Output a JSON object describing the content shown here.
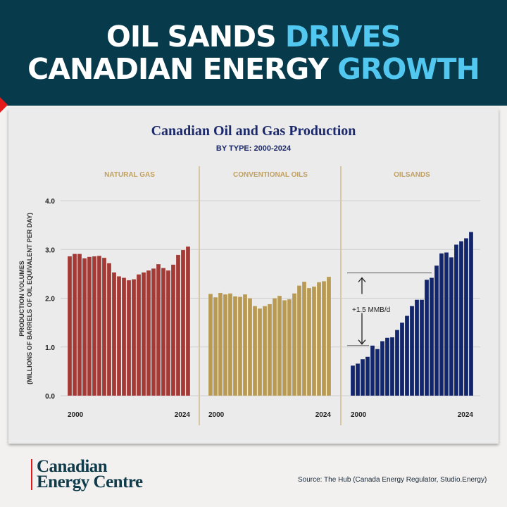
{
  "header": {
    "line1_white": "OIL SANDS ",
    "line1_accent": "DRIVES",
    "line2_white": "CANADIAN ENERGY ",
    "line2_accent": "GROWTH"
  },
  "colors": {
    "header_bg": "#073b4c",
    "accent": "#52c8f0",
    "natural_gas": "#a33a35",
    "conventional_oils": "#b99a55",
    "oilsands": "#13266b",
    "title": "#1c2a6b",
    "panel_label": "#c0a060"
  },
  "chart_data": {
    "type": "bar",
    "title": "Canadian Oil and Gas Production",
    "subtitle": "BY TYPE: 2000-2024",
    "ylabel_line1": "PRODUCTION VOLUMES",
    "ylabel_line2": "(MILLIONS OF BARRELS OF OIL EQUIVALENT PER DAY)",
    "ylim": [
      0,
      4
    ],
    "yticks": [
      "0.0",
      "1.0",
      "2.0",
      "3.0",
      "4.0"
    ],
    "grid": true,
    "x": [
      2000,
      2001,
      2002,
      2003,
      2004,
      2005,
      2006,
      2007,
      2008,
      2009,
      2010,
      2011,
      2012,
      2013,
      2014,
      2015,
      2016,
      2017,
      2018,
      2019,
      2020,
      2021,
      2022,
      2023,
      2024
    ],
    "xtick_labels": [
      "2000",
      "2024"
    ],
    "panels": [
      {
        "name": "NATURAL GAS",
        "color": "#a33a35",
        "values": [
          2.86,
          2.91,
          2.91,
          2.82,
          2.85,
          2.86,
          2.87,
          2.83,
          2.72,
          2.53,
          2.45,
          2.42,
          2.37,
          2.39,
          2.49,
          2.53,
          2.57,
          2.61,
          2.7,
          2.62,
          2.57,
          2.69,
          2.89,
          2.99,
          3.06
        ]
      },
      {
        "name": "CONVENTIONAL OILS",
        "color": "#b99a55",
        "values": [
          2.09,
          2.02,
          2.11,
          2.08,
          2.1,
          2.04,
          2.03,
          2.08,
          2.0,
          1.84,
          1.79,
          1.84,
          1.88,
          2.0,
          2.05,
          1.96,
          1.98,
          2.1,
          2.26,
          2.34,
          2.21,
          2.24,
          2.33,
          2.35,
          2.44
        ]
      },
      {
        "name": "OILSANDS",
        "color": "#13266b",
        "values": [
          0.62,
          0.66,
          0.75,
          0.8,
          1.03,
          0.96,
          1.12,
          1.19,
          1.2,
          1.35,
          1.5,
          1.64,
          1.84,
          1.97,
          1.97,
          2.38,
          2.42,
          2.67,
          2.92,
          2.94,
          2.84,
          3.1,
          3.17,
          3.23,
          3.36
        ]
      }
    ],
    "annotation": {
      "text": "+1.5 MMB/d",
      "from": 1.03,
      "to": 2.52,
      "panel": "OILSANDS"
    }
  },
  "footer": {
    "logo_line1": "Canadian",
    "logo_line2": "Energy Centre",
    "source": "Source: The Hub (Canada Energy Regulator, Studio.Energy)"
  }
}
